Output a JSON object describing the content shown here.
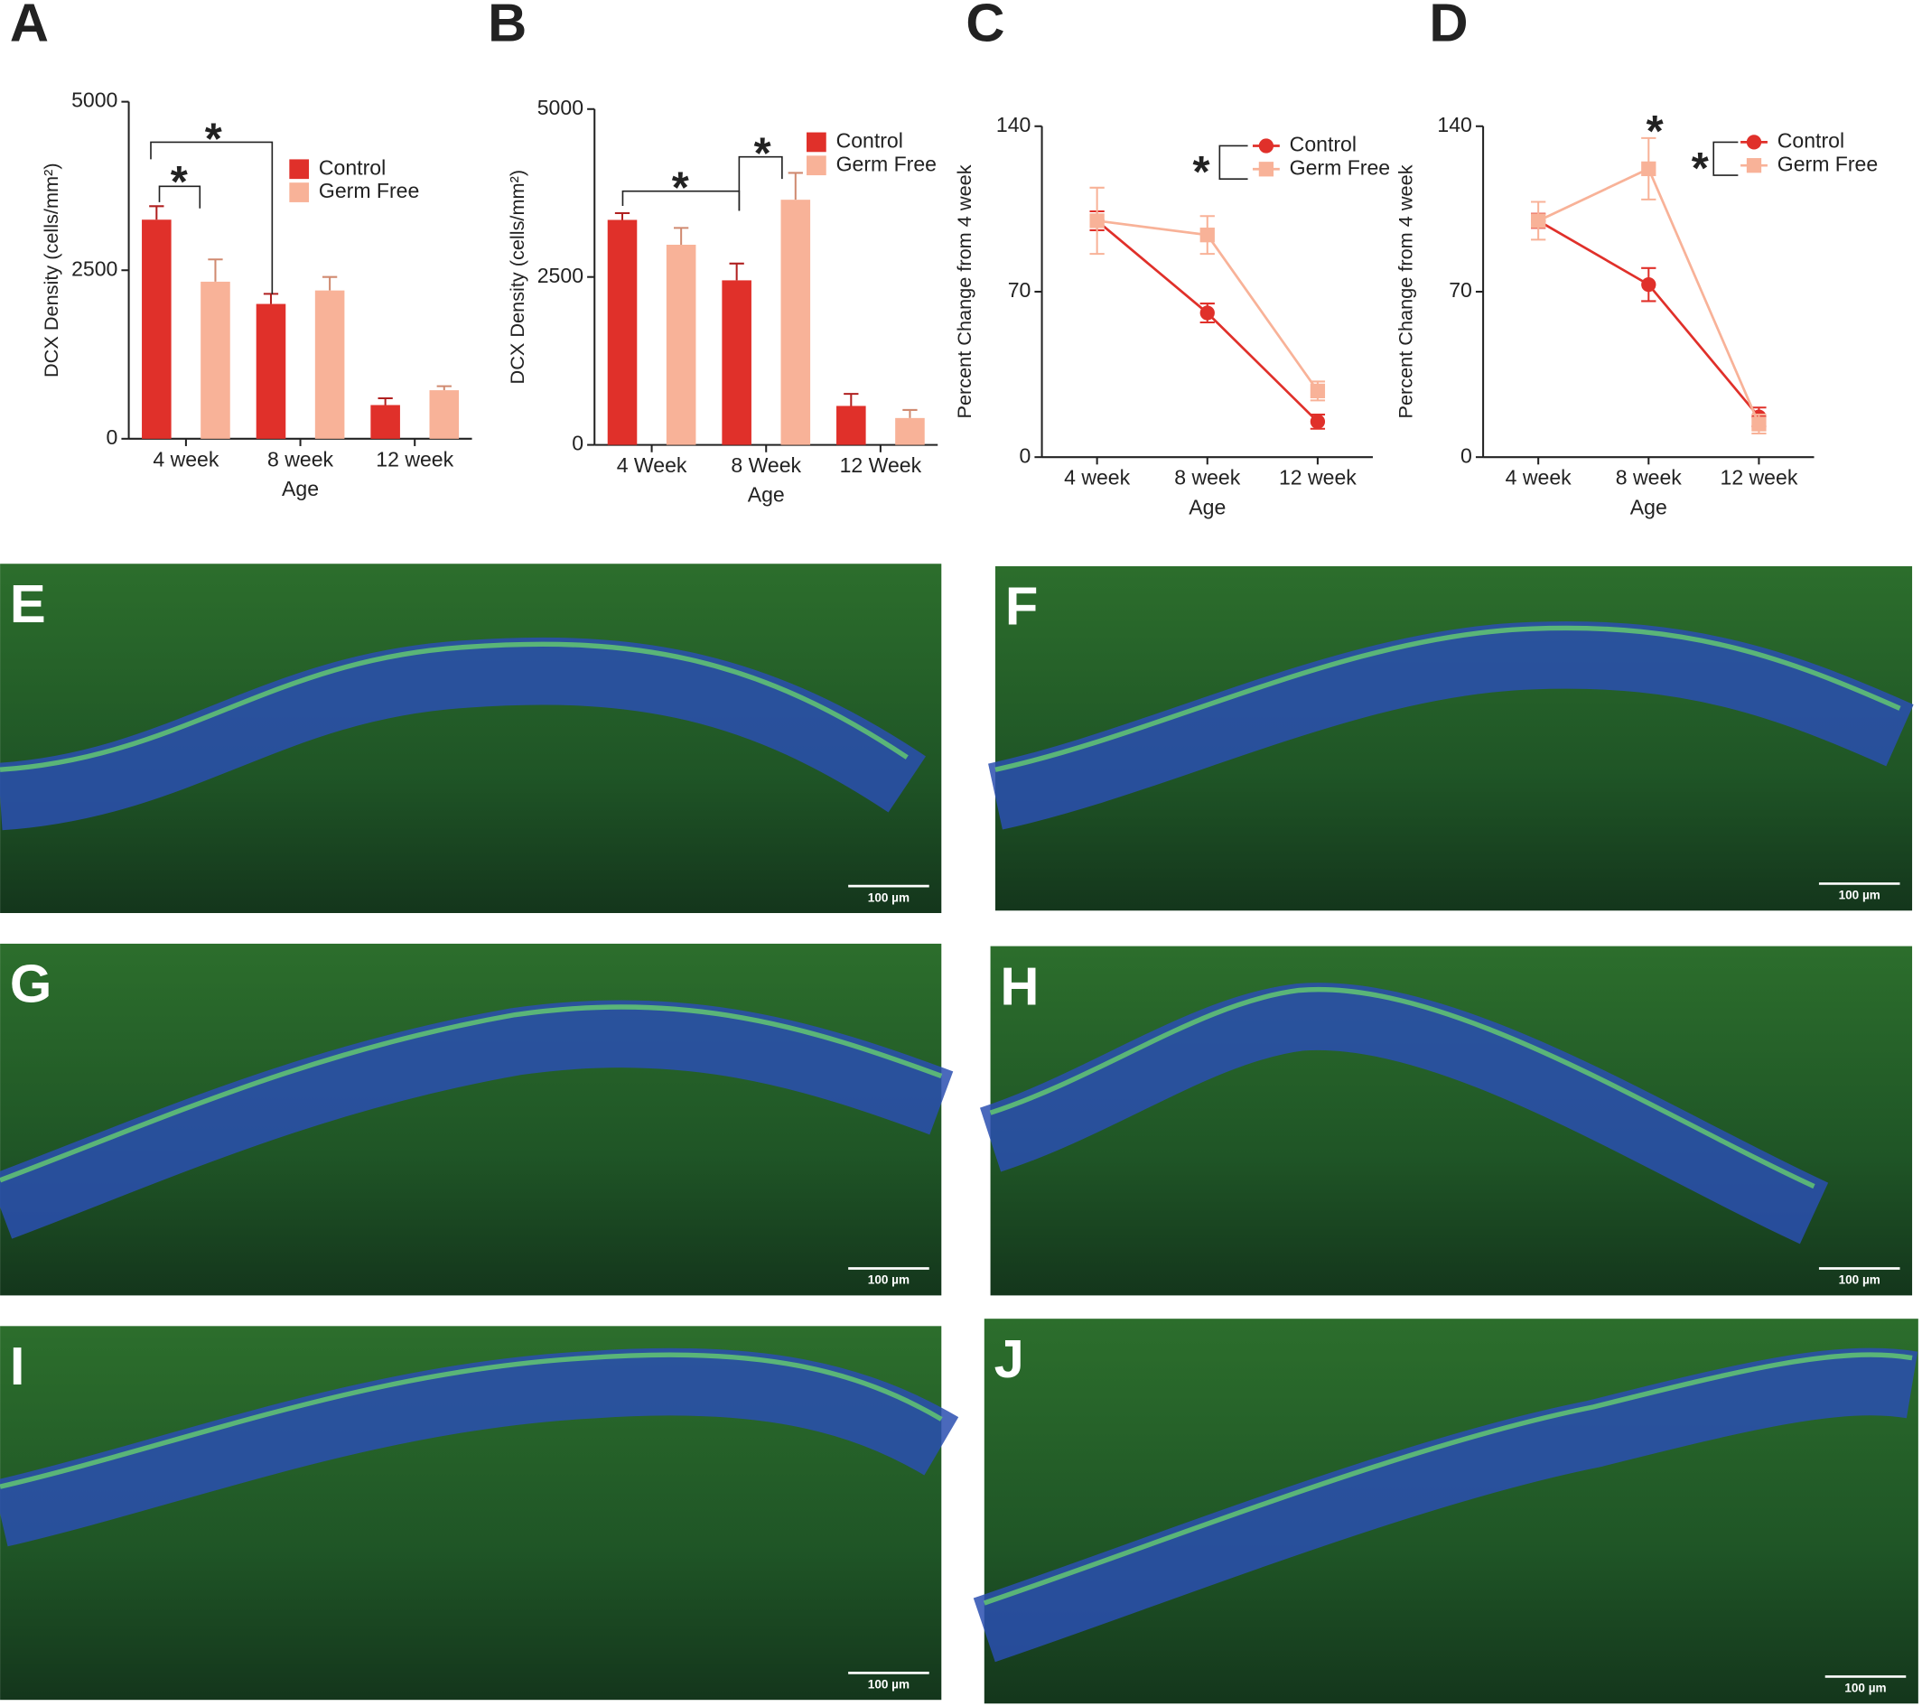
{
  "chart_data": [
    {
      "type": "bar",
      "panel_label": "A",
      "y_label": "DCX Density (cells/mm²)",
      "x_label": "Age",
      "categories": [
        "4 week",
        "8 week",
        "12 week"
      ],
      "series": [
        {
          "name": "Control",
          "color": "#e0302a",
          "values": [
            3250,
            2000,
            500
          ],
          "errors": [
            200,
            150,
            100
          ]
        },
        {
          "name": "Germ Free",
          "color": "#f8b298",
          "values": [
            2330,
            2200,
            720
          ],
          "errors": [
            330,
            200,
            60
          ]
        }
      ],
      "ylim": [
        0,
        5000
      ],
      "yticks": [
        0,
        2500,
        5000
      ],
      "annotations": [
        "*",
        "*"
      ]
    },
    {
      "type": "bar",
      "panel_label": "B",
      "y_label": "DCX Density (cells/mm²)",
      "x_label": "Age",
      "categories": [
        "4 Week",
        "8 Week",
        "12 Week"
      ],
      "series": [
        {
          "name": "Control",
          "color": "#e0302a",
          "values": [
            3350,
            2450,
            580
          ],
          "errors": [
            100,
            250,
            180
          ]
        },
        {
          "name": "Germ Free",
          "color": "#f8b298",
          "values": [
            2980,
            3650,
            400
          ],
          "errors": [
            250,
            400,
            120
          ]
        }
      ],
      "ylim": [
        0,
        5000
      ],
      "yticks": [
        0,
        2500,
        5000
      ],
      "annotations": [
        "*",
        "*"
      ]
    },
    {
      "type": "line",
      "panel_label": "C",
      "y_label": "Percent Change from 4 week",
      "x_label": "Age",
      "categories": [
        "4 week",
        "8 week",
        "12 week"
      ],
      "series": [
        {
          "name": "Control",
          "color": "#e0302a",
          "values": [
            100,
            61,
            15
          ],
          "errors": [
            4,
            4,
            3
          ]
        },
        {
          "name": "Germ Free",
          "color": "#f8b298",
          "values": [
            100,
            94,
            28
          ],
          "errors": [
            14,
            8,
            4
          ]
        }
      ],
      "ylim": [
        0,
        140
      ],
      "yticks": [
        0,
        70,
        140
      ],
      "annotations": [
        "*"
      ]
    },
    {
      "type": "line",
      "panel_label": "D",
      "y_label": "Percent Change from 4 week",
      "x_label": "Age",
      "categories": [
        "4 week",
        "8 week",
        "12 week"
      ],
      "series": [
        {
          "name": "Control",
          "color": "#e0302a",
          "values": [
            100,
            73,
            17
          ],
          "errors": [
            3,
            7,
            4
          ]
        },
        {
          "name": "Germ Free",
          "color": "#f8b298",
          "values": [
            100,
            122,
            14
          ],
          "errors": [
            8,
            13,
            4
          ]
        }
      ],
      "ylim": [
        0,
        140
      ],
      "yticks": [
        0,
        70,
        140
      ],
      "annotations": [
        "*",
        "*"
      ]
    }
  ],
  "panels": [
    {
      "label": "E",
      "scale_bar": "100 µm"
    },
    {
      "label": "F",
      "scale_bar": "100 µm"
    },
    {
      "label": "G",
      "scale_bar": "100 µm"
    },
    {
      "label": "H",
      "scale_bar": "100 µm"
    },
    {
      "label": "I",
      "scale_bar": "100 µm"
    },
    {
      "label": "J",
      "scale_bar": "100 µm"
    }
  ]
}
